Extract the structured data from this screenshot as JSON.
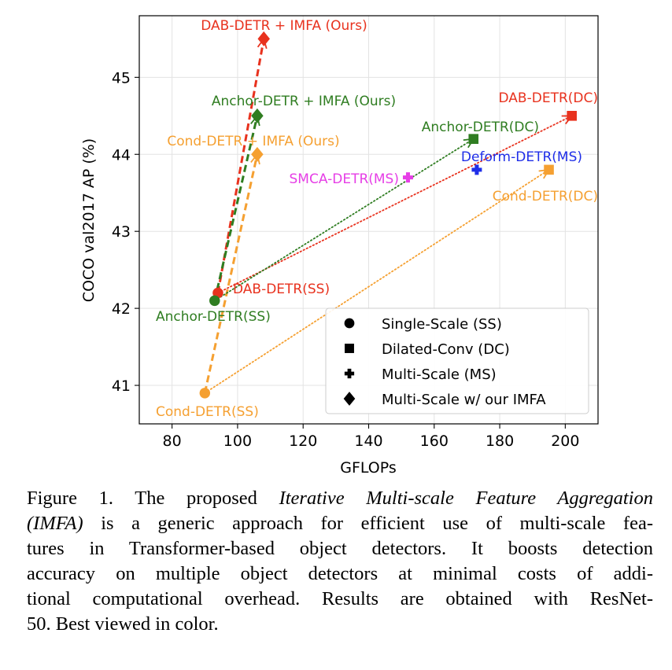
{
  "chart_data": {
    "type": "scatter",
    "xlabel": "GFLOPs",
    "ylabel": "COCO val2017 AP (%)",
    "xlim": [
      70,
      210
    ],
    "ylim": [
      40.5,
      45.8
    ],
    "xticks": [
      80,
      100,
      120,
      140,
      160,
      180,
      200
    ],
    "yticks": [
      41,
      42,
      43,
      44,
      45
    ],
    "grid": true,
    "legend_position": "bottom-right",
    "legend": [
      {
        "marker": "circle",
        "label": "Single-Scale (SS)"
      },
      {
        "marker": "square",
        "label": "Dilated-Conv (DC)"
      },
      {
        "marker": "plus",
        "label": "Multi-Scale (MS)"
      },
      {
        "marker": "diamond",
        "label": "Multi-Scale w/ our IMFA"
      }
    ],
    "colors": {
      "dab": "#e8321e",
      "anchor": "#2f7d21",
      "cond": "#f5a031",
      "deform": "#1f2ee8",
      "smca": "#e63ee6"
    },
    "points": [
      {
        "id": "dab-ss",
        "label": "DAB-DETR(SS)",
        "x": 94,
        "y": 42.2,
        "marker": "circle",
        "color": "#e8321e"
      },
      {
        "id": "anchor-ss",
        "label": "Anchor-DETR(SS)",
        "x": 93,
        "y": 42.1,
        "marker": "circle",
        "color": "#2f7d21"
      },
      {
        "id": "cond-ss",
        "label": "Cond-DETR(SS)",
        "x": 90,
        "y": 40.9,
        "marker": "circle",
        "color": "#f5a031"
      },
      {
        "id": "dab-dc",
        "label": "DAB-DETR(DC)",
        "x": 202,
        "y": 44.5,
        "marker": "square",
        "color": "#e8321e"
      },
      {
        "id": "anchor-dc",
        "label": "Anchor-DETR(DC)",
        "x": 172,
        "y": 44.2,
        "marker": "square",
        "color": "#2f7d21"
      },
      {
        "id": "cond-dc",
        "label": "Cond-DETR(DC)",
        "x": 195,
        "y": 43.8,
        "marker": "square",
        "color": "#f5a031"
      },
      {
        "id": "deform-ms",
        "label": "Deform-DETR(MS)",
        "x": 173,
        "y": 43.8,
        "marker": "plus",
        "color": "#1f2ee8"
      },
      {
        "id": "smca-ms",
        "label": "SMCA-DETR(MS)",
        "x": 152,
        "y": 43.7,
        "marker": "plus",
        "color": "#e63ee6"
      },
      {
        "id": "dab-imfa",
        "label": "DAB-DETR + IMFA (Ours)",
        "x": 108,
        "y": 45.5,
        "marker": "diamond",
        "color": "#e8321e"
      },
      {
        "id": "anchor-imfa",
        "label": "Anchor-DETR + IMFA (Ours)",
        "x": 106,
        "y": 44.5,
        "marker": "diamond",
        "color": "#2f7d21"
      },
      {
        "id": "cond-imfa",
        "label": "Cond-DETR + IMFA (Ours)",
        "x": 106,
        "y": 44.0,
        "marker": "diamond",
        "color": "#f5a031"
      }
    ],
    "arrows": [
      {
        "from": "dab-ss",
        "to": "dab-imfa",
        "style": "dashed",
        "color": "#e8321e"
      },
      {
        "from": "anchor-ss",
        "to": "anchor-imfa",
        "style": "dashed",
        "color": "#2f7d21"
      },
      {
        "from": "cond-ss",
        "to": "cond-imfa",
        "style": "dashed",
        "color": "#f5a031"
      },
      {
        "from": "dab-ss",
        "to": "dab-dc",
        "style": "dotted",
        "color": "#e8321e"
      },
      {
        "from": "anchor-ss",
        "to": "anchor-dc",
        "style": "dotted",
        "color": "#2f7d21"
      },
      {
        "from": "cond-ss",
        "to": "cond-dc",
        "style": "dotted",
        "color": "#f5a031"
      }
    ]
  },
  "caption": {
    "lines": [
      [
        {
          "t": "Figure 1. The proposed "
        },
        {
          "t": "Iterative Multi-scale Feature Aggregation",
          "i": true
        }
      ],
      [
        {
          "t": "(IMFA)",
          "i": true
        },
        {
          "t": " is a generic approach for efficient use of multi-scale fea-"
        }
      ],
      [
        {
          "t": "tures in Transformer-based object detectors.  It boosts detection"
        }
      ],
      [
        {
          "t": "accuracy on multiple object detectors at minimal costs of addi-"
        }
      ],
      [
        {
          "t": "tional computational overhead. Results are obtained with ResNet-"
        }
      ],
      [
        {
          "t": "50. Best viewed in color."
        }
      ]
    ]
  }
}
